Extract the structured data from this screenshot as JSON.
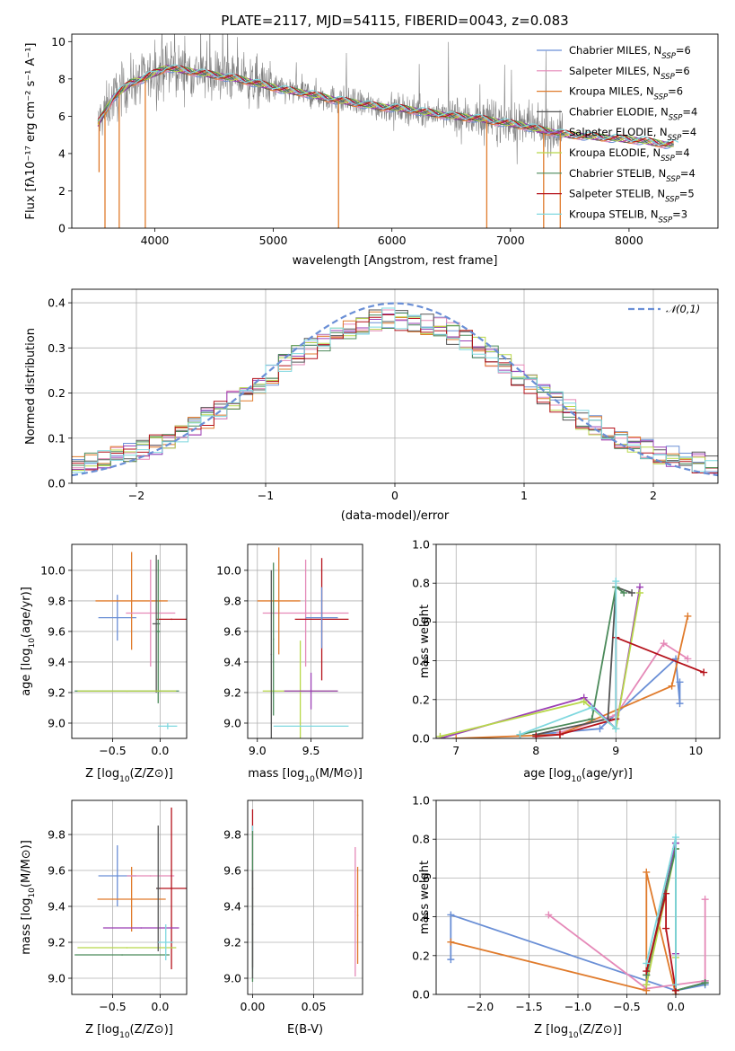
{
  "figure_title": "PLATE=2117, MJD=54115, FIBERID=0043, z=0.083",
  "colors": [
    "#6a8fd6",
    "#e589b8",
    "#e07b2c",
    "#555555",
    "#9b3fb5",
    "#b8d84a",
    "#4b8a5a",
    "#b5121b",
    "#7fd8df"
  ],
  "chart_data": [
    {
      "id": "spectrum",
      "type": "line",
      "xlabel": "wavelength [Angstrom, rest frame]",
      "ylabel": "Flux [fλ10⁻¹⁷ erg cm⁻² s⁻¹ A⁻¹]",
      "xlim": [
        3300,
        8750
      ],
      "ylim": [
        0,
        10.4
      ],
      "xticks": [
        4000,
        5000,
        6000,
        7000,
        8000
      ],
      "yticks": [
        0,
        2,
        4,
        6,
        8,
        10
      ],
      "grid": false,
      "legend_position": "top-right",
      "data_color": "#808080",
      "model_color": "#7fd8df",
      "continuum": {
        "x": [
          3520,
          3650,
          3800,
          3900,
          4000,
          4100,
          4200,
          4300,
          4500,
          4700,
          4900,
          5100,
          5300,
          5500,
          5700,
          5900,
          6100,
          6300,
          6500,
          6700,
          6900,
          7100,
          7300,
          7500,
          7700,
          7900,
          8100,
          8300,
          8500
        ],
        "y": [
          5.6,
          7.0,
          7.8,
          8.0,
          8.3,
          8.6,
          8.5,
          8.4,
          8.2,
          8.0,
          7.7,
          7.4,
          7.2,
          6.9,
          6.7,
          6.5,
          6.4,
          6.2,
          6.0,
          5.9,
          5.7,
          5.5,
          5.2,
          5.0,
          4.9,
          4.8,
          4.7,
          4.5,
          4.5
        ]
      },
      "dips": [
        {
          "x": 3530,
          "y": 3.0
        },
        {
          "x": 3580,
          "y": 0
        },
        {
          "x": 3700,
          "y": 0
        },
        {
          "x": 3920,
          "y": 0
        },
        {
          "x": 5550,
          "y": 0
        },
        {
          "x": 6800,
          "y": 0
        },
        {
          "x": 7280,
          "y": 0
        },
        {
          "x": 7420,
          "y": 0
        }
      ],
      "series": [
        {
          "name": "Chabrier MILES, N_SSP=6",
          "prefix": "Chabrier MILES, N",
          "sub": "SSP",
          "suffix": "=6",
          "color": "#6a8fd6"
        },
        {
          "name": "Salpeter MILES, N_SSP=6",
          "prefix": "Salpeter MILES, N",
          "sub": "SSP",
          "suffix": "=6",
          "color": "#e589b8"
        },
        {
          "name": "Kroupa MILES, N_SSP=6",
          "prefix": "Kroupa MILES, N",
          "sub": "SSP",
          "suffix": "=6",
          "color": "#e07b2c"
        },
        {
          "name": "Chabrier ELODIE, N_SSP=4",
          "prefix": "Chabrier ELODIE, N",
          "sub": "SSP",
          "suffix": "=4",
          "color": "#555555"
        },
        {
          "name": "Salpeter ELODIE, N_SSP=4",
          "prefix": "Salpeter ELODIE, N",
          "sub": "SSP",
          "suffix": "=4",
          "color": "#9b3fb5"
        },
        {
          "name": "Kroupa ELODIE, N_SSP=4",
          "prefix": "Kroupa ELODIE, N",
          "sub": "SSP",
          "suffix": "=4",
          "color": "#b8d84a"
        },
        {
          "name": "Chabrier STELIB, N_SSP=4",
          "prefix": "Chabrier STELIB, N",
          "sub": "SSP",
          "suffix": "=4",
          "color": "#4b8a5a"
        },
        {
          "name": "Salpeter STELIB, N_SSP=5",
          "prefix": "Salpeter STELIB, N",
          "sub": "SSP",
          "suffix": "=5",
          "color": "#b5121b"
        },
        {
          "name": "Kroupa STELIB, N_SSP=3",
          "prefix": "Kroupa STELIB, N",
          "sub": "SSP",
          "suffix": "=3",
          "color": "#7fd8df"
        }
      ]
    },
    {
      "id": "residuals",
      "type": "histogram",
      "xlabel": "(data-model)/error",
      "ylabel": "Normed distribution",
      "xlim": [
        -2.5,
        2.5
      ],
      "ylim": [
        0,
        0.43
      ],
      "xticks": [
        -2,
        -1,
        0,
        1,
        2
      ],
      "yticks": [
        0.0,
        0.1,
        0.2,
        0.3,
        0.4
      ],
      "grid": true,
      "bin_width": 0.1,
      "legend": "𝒩(0,1)",
      "legend_position": "top-right",
      "normal_curve": {
        "mean": 0,
        "sigma": 1,
        "color": "#6a8fd6",
        "style": "dashed"
      }
    },
    {
      "id": "age-vs-Z",
      "type": "errorbar",
      "xlabel": "Z [log10(Z/Z⊙)]",
      "ylabel": "age [log10(age/yr)]",
      "xlim": [
        -0.93,
        0.28
      ],
      "ylim": [
        8.9,
        10.17
      ],
      "xticks": [
        -0.5,
        0.0
      ],
      "yticks": [
        9.0,
        9.2,
        9.4,
        9.6,
        9.8,
        10.0
      ],
      "grid": true,
      "points": [
        {
          "x": -0.45,
          "xe": 0.2,
          "y": 9.69,
          "ye": 0.15,
          "color": "#6a8fd6"
        },
        {
          "x": -0.3,
          "xe": 0.38,
          "y": 9.8,
          "ye": 0.32,
          "color": "#e07b2c"
        },
        {
          "x": -0.1,
          "xe": 0.26,
          "y": 9.72,
          "ye": 0.35,
          "color": "#e589b8"
        },
        {
          "x": 0.12,
          "xe": 0.16,
          "y": 9.68,
          "ye": 0.0,
          "color": "#b5121b"
        },
        {
          "x": -0.04,
          "xe": 0.04,
          "y": 9.65,
          "ye": 0.45,
          "color": "#555555"
        },
        {
          "x": -0.02,
          "xe": 0.02,
          "y": 9.6,
          "ye": 0.47,
          "color": "#4b8a5a"
        },
        {
          "x": -0.35,
          "xe": 0.55,
          "y": 9.21,
          "ye": 0.0,
          "color": "#4b8a5a"
        },
        {
          "x": -0.35,
          "xe": 0.52,
          "y": 9.21,
          "ye": 0.0,
          "color": "#b8d84a"
        },
        {
          "x": 0.08,
          "xe": 0.1,
          "y": 8.98,
          "ye": 0.02,
          "color": "#7fd8df"
        }
      ]
    },
    {
      "id": "age-vs-mass",
      "type": "errorbar",
      "xlabel": "mass [log10(M/M⊙)]",
      "ylabel": "",
      "xlim": [
        8.91,
        9.98
      ],
      "ylim": [
        8.9,
        10.17
      ],
      "xticks": [
        9.0,
        9.5
      ],
      "yticks": [
        9.0,
        9.2,
        9.4,
        9.6,
        9.8,
        10.0
      ],
      "grid": true,
      "points": [
        {
          "x": 9.45,
          "xe": 0.4,
          "y": 9.72,
          "ye": 0.35,
          "color": "#e589b8"
        },
        {
          "x": 9.2,
          "xe": 0.2,
          "y": 9.8,
          "ye": 0.35,
          "color": "#e07b2c"
        },
        {
          "x": 9.6,
          "xe": 0.25,
          "y": 9.68,
          "ye": 0.4,
          "color": "#b5121b"
        },
        {
          "x": 9.6,
          "xe": 0.15,
          "y": 9.69,
          "ye": 0.2,
          "color": "#6a8fd6"
        },
        {
          "x": 9.4,
          "xe": 0.35,
          "y": 9.21,
          "ye": 0.33,
          "color": "#b8d84a"
        },
        {
          "x": 9.5,
          "xe": 0.25,
          "y": 9.21,
          "ye": 0.12,
          "color": "#9b3fb5"
        },
        {
          "x": 9.5,
          "xe": 0.35,
          "y": 8.98,
          "ye": 0.0,
          "color": "#7fd8df"
        },
        {
          "x": 9.13,
          "xe": 0.0,
          "y": 9.45,
          "ye": 0.55,
          "color": "#555555"
        },
        {
          "x": 9.15,
          "xe": 0.0,
          "y": 9.55,
          "ye": 0.5,
          "color": "#4b8a5a"
        }
      ]
    },
    {
      "id": "mass-weight-vs-age",
      "type": "line",
      "xlabel": "age [log10(age/yr)]",
      "ylabel": "mass weight",
      "xlim": [
        6.75,
        10.3
      ],
      "ylim": [
        0,
        1.0
      ],
      "xticks": [
        7,
        8,
        9,
        10
      ],
      "yticks": [
        0.0,
        0.2,
        0.4,
        0.6,
        0.8,
        1.0
      ],
      "grid": true,
      "series": [
        {
          "color": "#6a8fd6",
          "x": [
            8.0,
            8.8,
            9.75,
            9.8,
            9.8
          ],
          "y": [
            0.02,
            0.05,
            0.41,
            0.18,
            0.29
          ]
        },
        {
          "color": "#e589b8",
          "x": [
            8.3,
            9.0,
            9.6,
            9.9
          ],
          "y": [
            0.03,
            0.12,
            0.49,
            0.41
          ]
        },
        {
          "color": "#e07b2c",
          "x": [
            7.0,
            8.3,
            9.7,
            9.9
          ],
          "y": [
            0.0,
            0.02,
            0.27,
            0.63
          ]
        },
        {
          "color": "#555555",
          "x": [
            8.0,
            8.9,
            9.0,
            9.2
          ],
          "y": [
            0.02,
            0.1,
            0.78,
            0.75
          ]
        },
        {
          "color": "#9b3fb5",
          "x": [
            6.8,
            8.6,
            9.0,
            9.3
          ],
          "y": [
            0.0,
            0.21,
            0.05,
            0.78
          ]
        },
        {
          "color": "#b8d84a",
          "x": [
            6.8,
            8.6,
            9.0,
            9.3
          ],
          "y": [
            0.01,
            0.19,
            0.05,
            0.75
          ]
        },
        {
          "color": "#4b8a5a",
          "x": [
            7.8,
            8.7,
            9.0,
            9.1
          ],
          "y": [
            0.02,
            0.1,
            0.78,
            0.75
          ]
        },
        {
          "color": "#b5121b",
          "x": [
            8.0,
            8.3,
            9.0,
            9.0,
            10.1
          ],
          "y": [
            0.01,
            0.02,
            0.1,
            0.52,
            0.34
          ]
        },
        {
          "color": "#7fd8df",
          "x": [
            7.8,
            8.7,
            9.0,
            9.0
          ],
          "y": [
            0.02,
            0.16,
            0.05,
            0.81
          ]
        }
      ]
    },
    {
      "id": "mass-vs-Z",
      "type": "errorbar",
      "xlabel": "Z [log10(Z/Z⊙)]",
      "ylabel": "mass [log10(M/M⊙)]",
      "xlim": [
        -0.93,
        0.28
      ],
      "ylim": [
        8.91,
        9.99
      ],
      "xticks": [
        -0.5,
        0.0
      ],
      "yticks": [
        9.0,
        9.2,
        9.4,
        9.6,
        9.8
      ],
      "grid": true,
      "points": [
        {
          "x": -0.45,
          "xe": 0.2,
          "y": 9.57,
          "ye": 0.17,
          "color": "#6a8fd6"
        },
        {
          "x": -0.3,
          "xe": 0.36,
          "y": 9.44,
          "ye": 0.18,
          "color": "#e07b2c"
        },
        {
          "x": -0.1,
          "xe": 0.25,
          "y": 9.57,
          "ye": 0.0,
          "color": "#e589b8"
        },
        {
          "x": 0.12,
          "xe": 0.16,
          "y": 9.5,
          "ye": 0.45,
          "color": "#b5121b"
        },
        {
          "x": -0.2,
          "xe": 0.4,
          "y": 9.28,
          "ye": 0.0,
          "color": "#9b3fb5"
        },
        {
          "x": -0.35,
          "xe": 0.52,
          "y": 9.17,
          "ye": 0.0,
          "color": "#b8d84a"
        },
        {
          "x": -0.4,
          "xe": 0.5,
          "y": 9.13,
          "ye": 0.0,
          "color": "#4b8a5a"
        },
        {
          "x": -0.02,
          "xe": 0.02,
          "y": 9.5,
          "ye": 0.35,
          "color": "#555555"
        },
        {
          "x": 0.06,
          "xe": 0.08,
          "y": 9.2,
          "ye": 0.1,
          "color": "#7fd8df"
        }
      ]
    },
    {
      "id": "mass-vs-EBV",
      "type": "errorbar",
      "xlabel": "E(B-V)",
      "ylabel": "",
      "xlim": [
        -0.004,
        0.09
      ],
      "ylim": [
        8.91,
        9.99
      ],
      "xticks": [
        0.0,
        0.05
      ],
      "yticks": [
        9.0,
        9.2,
        9.4,
        9.6,
        9.8
      ],
      "grid": true,
      "points": [
        {
          "x": 0.0,
          "xe": 0.0,
          "y": 9.5,
          "ye": 0.44,
          "color": "#b5121b"
        },
        {
          "x": 0.0,
          "xe": 0.0,
          "y": 9.45,
          "ye": 0.4,
          "color": "#7fd8df"
        },
        {
          "x": 0.0,
          "xe": 0.0,
          "y": 9.4,
          "ye": 0.42,
          "color": "#4b8a5a"
        },
        {
          "x": 0.0,
          "xe": 0.0,
          "y": 9.3,
          "ye": 0.3,
          "color": "#555555"
        },
        {
          "x": 0.084,
          "xe": 0.0,
          "y": 9.37,
          "ye": 0.36,
          "color": "#e589b8"
        },
        {
          "x": 0.086,
          "xe": 0.0,
          "y": 9.35,
          "ye": 0.27,
          "color": "#e07b2c"
        }
      ]
    },
    {
      "id": "mass-weight-vs-Z",
      "type": "line",
      "xlabel": "Z [log10(Z/Z⊙)]",
      "ylabel": "mass weight",
      "xlim": [
        -2.45,
        0.45
      ],
      "ylim": [
        0,
        1.0
      ],
      "xticks": [
        -2.0,
        -1.5,
        -1.0,
        -0.5,
        0.0
      ],
      "yticks": [
        0.0,
        0.2,
        0.4,
        0.6,
        0.8,
        1.0
      ],
      "grid": true,
      "series": [
        {
          "color": "#6a8fd6",
          "x": [
            -2.3,
            -2.3,
            0.0,
            0.3,
            0.3
          ],
          "y": [
            0.18,
            0.41,
            0.02,
            0.05,
            0.07
          ]
        },
        {
          "color": "#e589b8",
          "x": [
            -1.3,
            -0.3,
            0.3,
            0.3
          ],
          "y": [
            0.41,
            0.03,
            0.07,
            0.49
          ]
        },
        {
          "color": "#e07b2c",
          "x": [
            -2.3,
            -0.3,
            -0.3,
            0.0
          ],
          "y": [
            0.27,
            0.02,
            0.63,
            0.0
          ]
        },
        {
          "color": "#555555",
          "x": [
            -0.3,
            0.0,
            0.0,
            0.3
          ],
          "y": [
            0.1,
            0.78,
            0.02,
            0.06
          ]
        },
        {
          "color": "#9b3fb5",
          "x": [
            -0.3,
            0.0,
            0.0
          ],
          "y": [
            0.05,
            0.78,
            0.21
          ]
        },
        {
          "color": "#b8d84a",
          "x": [
            -0.3,
            0.0,
            0.0
          ],
          "y": [
            0.05,
            0.75,
            0.19
          ]
        },
        {
          "color": "#4b8a5a",
          "x": [
            -0.3,
            0.0,
            0.0,
            0.3
          ],
          "y": [
            0.1,
            0.75,
            0.02,
            0.06
          ]
        },
        {
          "color": "#b5121b",
          "x": [
            -0.3,
            -0.1,
            -0.1,
            0.0
          ],
          "y": [
            0.12,
            0.52,
            0.34,
            0.02
          ]
        },
        {
          "color": "#7fd8df",
          "x": [
            -0.3,
            0.0,
            0.0
          ],
          "y": [
            0.16,
            0.81,
            0.05
          ]
        }
      ]
    }
  ]
}
